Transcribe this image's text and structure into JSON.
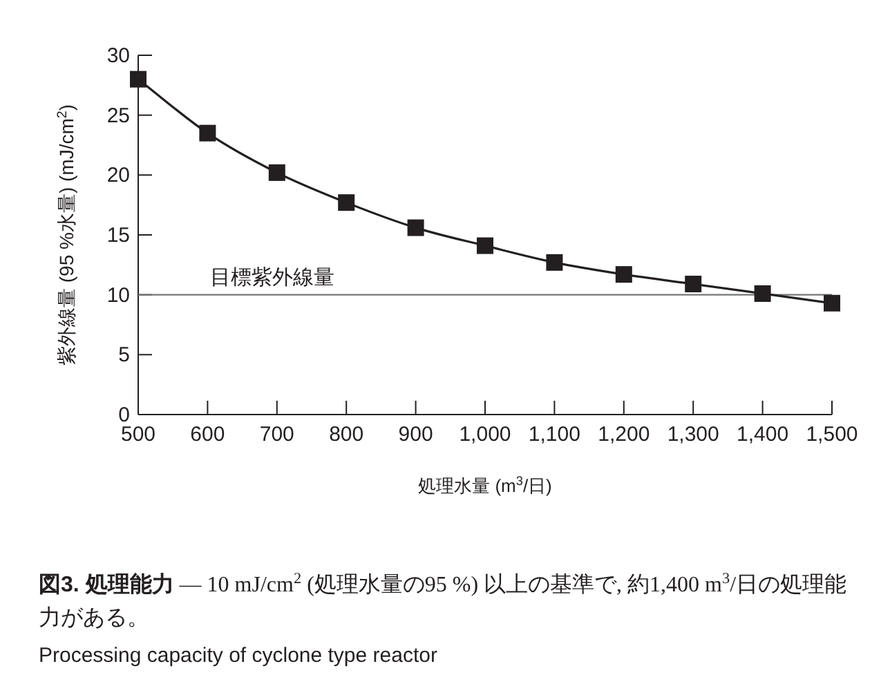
{
  "chart_data": {
    "type": "line",
    "title": "**図3.  処理能力** — 10 mJ/cm$^{2}$ (処理水量の95 %) 以上の基準で, 約1,400 m$^{3}$/日の処理能力がある。",
    "subtitle": "Processing capacity of cyclone type reactor",
    "xlabel": "処理水量 (m$^{3}$/日)",
    "ylabel": "紫外線量 (95 %水量) (mJ/cm$^{2}$)",
    "x": [
      500,
      600,
      700,
      800,
      900,
      1000,
      1100,
      1200,
      1300,
      1400,
      1500
    ],
    "series": [
      {
        "color": "#231f20",
        "values": [
          28.0,
          23.5,
          20.2,
          17.7,
          15.6,
          14.1,
          12.7,
          11.7,
          10.9,
          10.1,
          9.3
        ]
      }
    ],
    "xlim": [
      500,
      1500
    ],
    "ylim": [
      0,
      30
    ],
    "xticks": [
      500,
      600,
      700,
      800,
      900,
      {
        "value": 1000,
        "label": "1,000"
      },
      {
        "value": 1100,
        "label": "1,100"
      },
      {
        "value": 1200,
        "label": "1,200"
      },
      {
        "value": 1300,
        "label": "1,300"
      },
      {
        "value": 1400,
        "label": "1,400"
      },
      {
        "value": 1500,
        "label": "1,500"
      }
    ],
    "yticks": [
      0,
      5,
      10,
      15,
      20,
      25,
      30
    ],
    "ref_lines": [
      {
        "axis": "y",
        "value": 10,
        "label": "目標紫外線量",
        "color": "#777777"
      }
    ],
    "grid": false,
    "marker": "square",
    "line_style": "solid"
  }
}
